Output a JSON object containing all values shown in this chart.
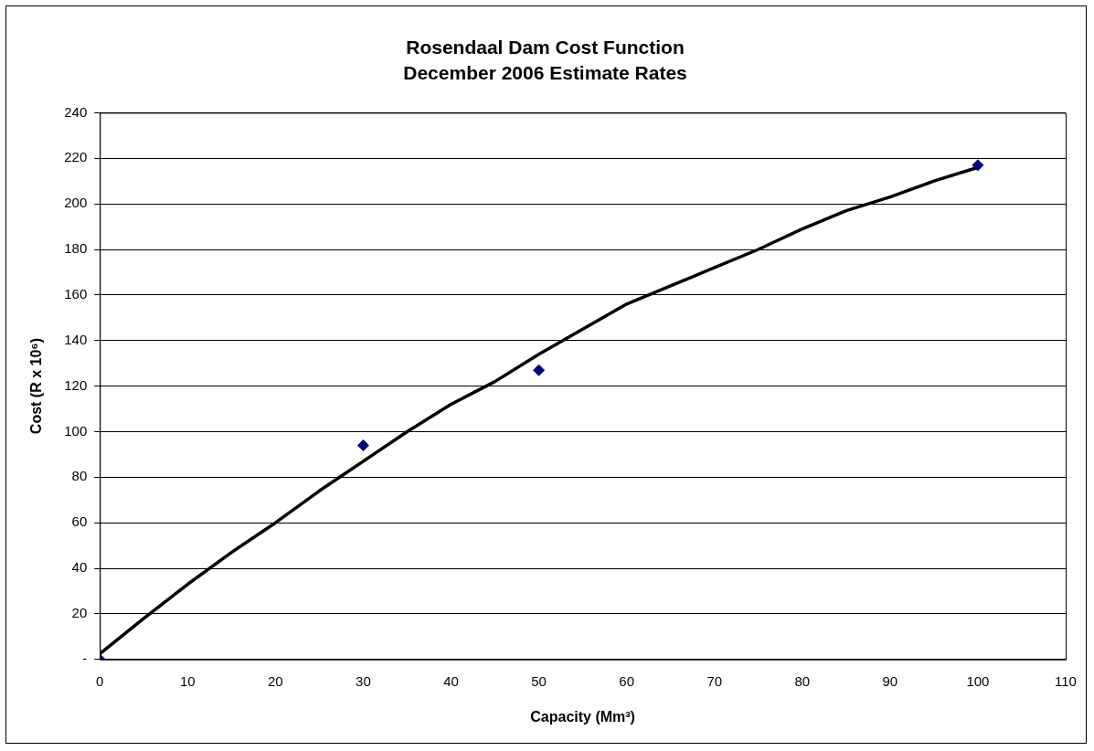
{
  "chart_data": {
    "type": "scatter",
    "title": "Rosendaal Dam Cost Function",
    "subtitle": "December 2006 Estimate Rates",
    "xlabel": "Capacity (Mm³)",
    "ylabel": "Cost (R x 10⁶)",
    "xlim": [
      0,
      110
    ],
    "xticks": [
      0,
      10,
      20,
      30,
      40,
      50,
      60,
      70,
      80,
      90,
      100,
      110
    ],
    "ylim": [
      0,
      240
    ],
    "yticks": [
      {
        "value": 0,
        "label": "-"
      },
      20,
      40,
      60,
      80,
      100,
      120,
      140,
      160,
      180,
      200,
      220,
      240
    ],
    "grid": "y",
    "legend": false,
    "series": [
      {
        "type": "line",
        "color": "#000000",
        "marker": "none",
        "line_style": "solid",
        "x": [
          0,
          5,
          10,
          15,
          20,
          25,
          30,
          35,
          40,
          45,
          50,
          55,
          60,
          65,
          70,
          75,
          80,
          85,
          90,
          95,
          100
        ],
        "values": [
          2.5,
          18,
          33,
          47,
          60,
          74,
          87,
          100,
          112,
          122,
          134,
          145,
          156,
          164,
          172,
          180,
          189,
          197,
          203,
          210,
          216
        ]
      },
      {
        "type": "scatter",
        "color": "#000080",
        "marker": "diamond",
        "x": [
          0,
          30,
          50,
          100
        ],
        "values": [
          0,
          94,
          127,
          217
        ]
      }
    ]
  }
}
